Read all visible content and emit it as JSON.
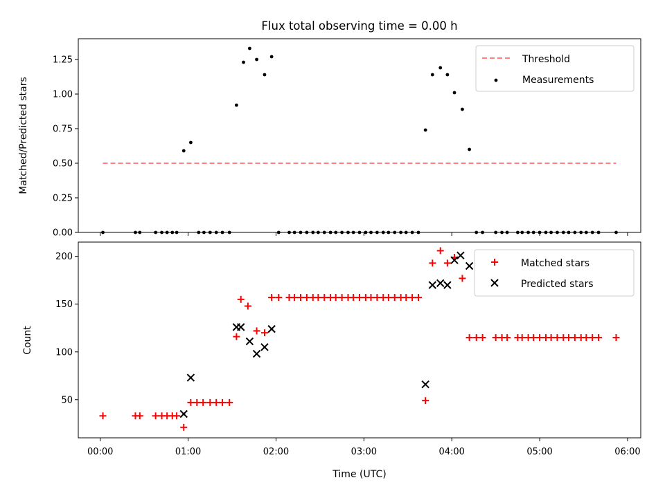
{
  "chart_data": [
    {
      "type": "scatter",
      "title": "Flux total observing time = 0.00 h",
      "xlabel": "",
      "ylabel": "Matched/Predicted stars",
      "x_unit": "hours UTC",
      "xlim": [
        -0.25,
        6.15
      ],
      "ylim": [
        0.0,
        1.4
      ],
      "yticks": [
        0.0,
        0.25,
        0.5,
        0.75,
        1.0,
        1.25
      ],
      "ytick_labels": [
        "0.00",
        "0.25",
        "0.50",
        "0.75",
        "1.00",
        "1.25"
      ],
      "grid": false,
      "legend_position": "top-right",
      "threshold": {
        "name": "Threshold",
        "y": 0.5,
        "x_range": [
          0.03,
          5.87
        ],
        "color": "#ff7f7f",
        "style": "dashed"
      },
      "series": [
        {
          "name": "Measurements",
          "color": "#000000",
          "marker": "dot",
          "x": [
            0.03,
            0.4,
            0.45,
            0.63,
            0.7,
            0.76,
            0.82,
            0.87,
            0.95,
            1.03,
            1.12,
            1.18,
            1.25,
            1.32,
            1.39,
            1.47,
            1.55,
            1.63,
            1.7,
            1.78,
            1.87,
            1.95,
            2.03,
            2.15,
            2.21,
            2.28,
            2.35,
            2.42,
            2.48,
            2.55,
            2.62,
            2.68,
            2.75,
            2.82,
            2.88,
            2.95,
            3.02,
            3.08,
            3.15,
            3.22,
            3.28,
            3.35,
            3.42,
            3.48,
            3.55,
            3.62,
            3.7,
            3.78,
            3.87,
            3.95,
            4.03,
            4.12,
            4.2,
            4.28,
            4.35,
            4.5,
            4.57,
            4.63,
            4.75,
            4.8,
            4.87,
            4.93,
            5.0,
            5.07,
            5.13,
            5.2,
            5.27,
            5.33,
            5.4,
            5.47,
            5.53,
            5.6,
            5.67,
            5.87
          ],
          "y": [
            0,
            0,
            0,
            0,
            0,
            0,
            0,
            0,
            0.59,
            0.65,
            0,
            0,
            0,
            0,
            0,
            0,
            0.92,
            1.23,
            1.33,
            1.25,
            1.14,
            1.27,
            0,
            0,
            0,
            0,
            0,
            0,
            0,
            0,
            0,
            0,
            0,
            0,
            0,
            0,
            0,
            0,
            0,
            0,
            0,
            0,
            0,
            0,
            0,
            0,
            0.74,
            1.14,
            1.19,
            1.14,
            1.01,
            0.89,
            0.6,
            0,
            0,
            0,
            0,
            0,
            0,
            0,
            0,
            0,
            0,
            0,
            0,
            0,
            0,
            0,
            0,
            0,
            0,
            0,
            0,
            0
          ]
        }
      ]
    },
    {
      "type": "scatter",
      "title": "",
      "xlabel": "Time (UTC)",
      "ylabel": "Count",
      "x_unit": "hours UTC",
      "xlim": [
        -0.25,
        6.15
      ],
      "ylim": [
        10,
        215
      ],
      "yticks": [
        50,
        100,
        150,
        200
      ],
      "xticks": [
        0,
        1,
        2,
        3,
        4,
        5,
        6
      ],
      "xtick_labels": [
        "00:00",
        "01:00",
        "02:00",
        "03:00",
        "04:00",
        "05:00",
        "06:00"
      ],
      "grid": false,
      "legend_position": "top-right",
      "series": [
        {
          "name": "Matched stars",
          "color": "#ff0000",
          "marker": "plus",
          "x": [
            0.03,
            0.4,
            0.45,
            0.63,
            0.7,
            0.76,
            0.82,
            0.87,
            0.95,
            1.03,
            1.1,
            1.17,
            1.25,
            1.32,
            1.39,
            1.47,
            1.55,
            1.6,
            1.68,
            1.78,
            1.87,
            1.95,
            2.03,
            2.15,
            2.21,
            2.28,
            2.35,
            2.42,
            2.48,
            2.55,
            2.62,
            2.68,
            2.75,
            2.82,
            2.88,
            2.95,
            3.02,
            3.08,
            3.15,
            3.22,
            3.28,
            3.35,
            3.42,
            3.48,
            3.55,
            3.62,
            3.7,
            3.78,
            3.87,
            3.95,
            4.03,
            4.12,
            4.2,
            4.28,
            4.35,
            4.5,
            4.57,
            4.63,
            4.75,
            4.8,
            4.87,
            4.93,
            5.0,
            5.07,
            5.13,
            5.2,
            5.27,
            5.33,
            5.4,
            5.47,
            5.53,
            5.6,
            5.67,
            5.87
          ],
          "y": [
            33,
            33,
            33,
            33,
            33,
            33,
            33,
            33,
            21,
            47,
            47,
            47,
            47,
            47,
            47,
            47,
            116,
            155,
            148,
            122,
            120,
            157,
            157,
            157,
            157,
            157,
            157,
            157,
            157,
            157,
            157,
            157,
            157,
            157,
            157,
            157,
            157,
            157,
            157,
            157,
            157,
            157,
            157,
            157,
            157,
            157,
            49,
            193,
            206,
            193,
            199,
            177,
            115,
            115,
            115,
            115,
            115,
            115,
            115,
            115,
            115,
            115,
            115,
            115,
            115,
            115,
            115,
            115,
            115,
            115,
            115,
            115,
            115,
            115
          ]
        },
        {
          "name": "Predicted stars",
          "color": "#000000",
          "marker": "x",
          "x": [
            0.95,
            1.03,
            1.55,
            1.6,
            1.7,
            1.78,
            1.87,
            1.95,
            3.7,
            3.78,
            3.87,
            3.95,
            4.03,
            4.1,
            4.2
          ],
          "y": [
            35,
            73,
            126,
            126,
            111,
            98,
            105,
            124,
            66,
            170,
            172,
            170,
            196,
            201,
            190
          ]
        }
      ]
    }
  ]
}
